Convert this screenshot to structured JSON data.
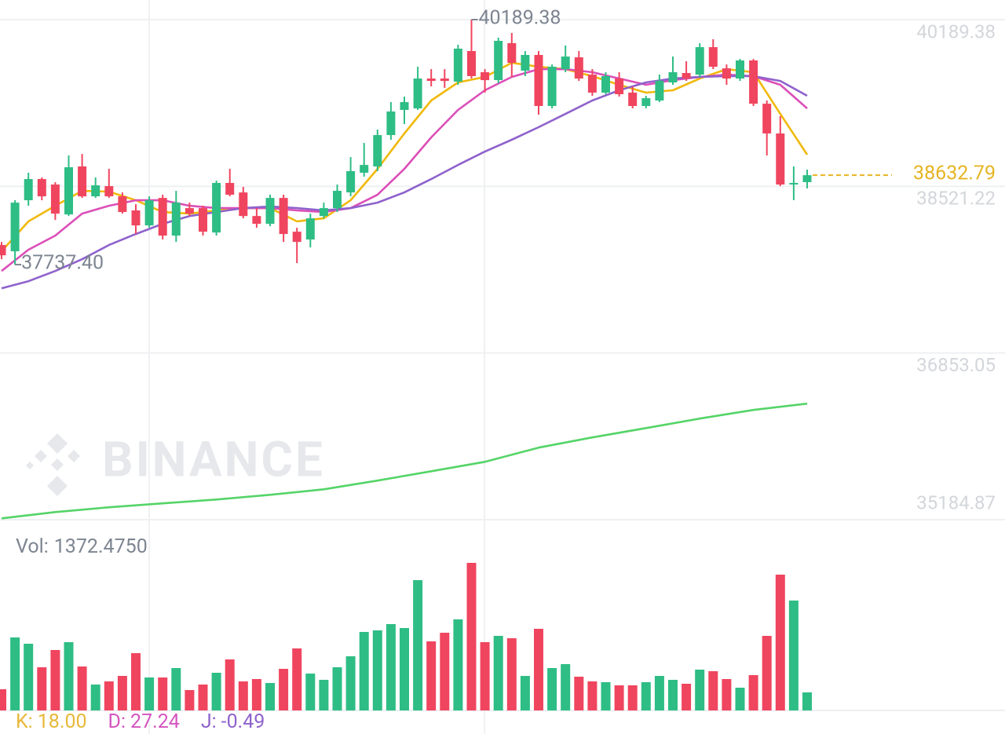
{
  "chart_data": {
    "type": "candlestick",
    "ylim": [
      35184.87,
      40385.8
    ],
    "yticks": [
      40189.38,
      38521.22,
      36853.05,
      35184.87
    ],
    "grid": true,
    "up_color": "#2ebd85",
    "down_color": "#f0455f",
    "open": [
      37934,
      37871,
      38382,
      38594,
      38539,
      38240,
      38720,
      38421,
      38523,
      38421,
      38280,
      38130,
      38405,
      38028,
      38303,
      38303,
      38059,
      38555,
      38460,
      38224,
      38146,
      38405,
      38067,
      37989,
      38224,
      38303,
      38460,
      38657,
      38720,
      39034,
      39286,
      39301,
      39600,
      39600,
      39569,
      39875,
      39663,
      39584,
      39954,
      39679,
      39836,
      39325,
      39694,
      39812,
      39639,
      39459,
      39600,
      39459,
      39325,
      39380,
      39561,
      39655,
      39639,
      39914,
      39702,
      39600,
      39781,
      39348,
      39050,
      38539,
      38563
    ],
    "high": [
      37965,
      38382,
      38657,
      38610,
      38562,
      38830,
      38845,
      38610,
      38696,
      38460,
      38342,
      38421,
      38437,
      38476,
      38358,
      38327,
      38578,
      38696,
      38515,
      38303,
      38437,
      38437,
      38107,
      38248,
      38358,
      38539,
      38814,
      38955,
      39089,
      39364,
      39419,
      39718,
      39694,
      39694,
      39938,
      40189.38,
      39694,
      40009,
      40056,
      39875,
      39875,
      39741,
      39930,
      39875,
      39694,
      39663,
      39663,
      39521,
      39427,
      39639,
      39820,
      39773,
      39954,
      39993,
      39741,
      39796,
      39796,
      39380,
      39223,
      38720,
      38688
    ],
    "low": [
      37792,
      37737.4,
      38327,
      38382,
      38185,
      38224,
      38405,
      38405,
      38405,
      38248,
      38044,
      38107,
      37989,
      37965,
      38224,
      38028,
      38028,
      38421,
      38201,
      38107,
      38122,
      37965,
      37753,
      37910,
      38201,
      38264,
      38421,
      38617,
      38673,
      38987,
      39144,
      39286,
      39521,
      39506,
      39537,
      39600,
      39459,
      39553,
      39616,
      39624,
      39238,
      39301,
      39663,
      39576,
      39427,
      39443,
      39419,
      39301,
      39301,
      39364,
      39537,
      39576,
      39616,
      39694,
      39537,
      39576,
      39325,
      38830,
      38523,
      38382,
      38500
    ],
    "close": [
      37831,
      38358,
      38594,
      38421,
      38248,
      38712,
      38421,
      38531,
      38421,
      38264,
      38130,
      38382,
      38028,
      38358,
      38248,
      38067,
      38555,
      38437,
      38224,
      38146,
      38405,
      38044,
      37965,
      38201,
      38303,
      38476,
      38673,
      38735,
      39034,
      39270,
      39364,
      39600,
      39576,
      39576,
      39899,
      39624,
      39584,
      39977,
      39757,
      39836,
      39325,
      39718,
      39820,
      39600,
      39459,
      39624,
      39443,
      39325,
      39403,
      39576,
      39663,
      39600,
      39914,
      39718,
      39600,
      39781,
      39348,
      39050,
      38539,
      38555,
      38632.79
    ],
    "high_label": "40189.38",
    "low_label": "37737.40",
    "ma_lines": [
      {
        "color": "#f0b90b",
        "x": [
          0,
          2,
          4,
          6,
          8,
          10,
          12,
          14,
          16,
          18,
          20,
          22,
          24,
          26,
          28,
          30,
          32,
          34,
          36,
          38,
          40,
          42,
          44,
          46,
          48,
          50,
          52,
          54,
          56,
          58,
          60
        ],
        "values": [
          37871,
          38170,
          38327,
          38476,
          38468,
          38382,
          38264,
          38248,
          38280,
          38303,
          38303,
          38170,
          38201,
          38382,
          38696,
          39050,
          39380,
          39561,
          39616,
          39757,
          39718,
          39694,
          39624,
          39537,
          39459,
          39482,
          39600,
          39694,
          39663,
          39246,
          38838
        ]
      },
      {
        "color": "#db4fb8",
        "x": [
          0,
          2,
          4,
          6,
          8,
          10,
          12,
          14,
          16,
          18,
          20,
          22,
          24,
          26,
          28,
          30,
          32,
          34,
          36,
          38,
          40,
          42,
          44,
          46,
          48,
          50,
          52,
          54,
          56,
          58,
          60
        ],
        "values": [
          37674,
          37887,
          38028,
          38248,
          38327,
          38382,
          38382,
          38327,
          38303,
          38303,
          38303,
          38280,
          38264,
          38303,
          38437,
          38696,
          39011,
          39286,
          39482,
          39616,
          39694,
          39694,
          39663,
          39600,
          39537,
          39584,
          39616,
          39639,
          39624,
          39537,
          39301
        ]
      },
      {
        "color": "#8e62cc",
        "x": [
          0,
          2,
          4,
          6,
          8,
          10,
          12,
          14,
          16,
          18,
          20,
          22,
          24,
          26,
          28,
          30,
          32,
          34,
          36,
          38,
          40,
          42,
          44,
          46,
          48,
          50,
          52,
          54,
          56,
          58,
          60
        ],
        "values": [
          37501,
          37572,
          37674,
          37792,
          37934,
          38044,
          38146,
          38224,
          38264,
          38303,
          38319,
          38303,
          38280,
          38303,
          38358,
          38460,
          38594,
          38735,
          38869,
          38987,
          39113,
          39246,
          39380,
          39482,
          39561,
          39600,
          39616,
          39624,
          39624,
          39576,
          39427
        ]
      },
      {
        "color": "#55d468",
        "x": [
          0,
          4,
          8,
          12,
          16,
          20,
          24,
          28,
          32,
          36,
          40,
          44,
          48,
          52,
          56,
          60
        ],
        "values": [
          35198,
          35261,
          35309,
          35348,
          35387,
          35434,
          35489,
          35576,
          35670,
          35764,
          35906,
          36008,
          36102,
          36197,
          36283,
          36346
        ]
      }
    ],
    "volume": [
      1611,
      5549,
      5072,
      3282,
      4595,
      5191,
      3342,
      1969,
      2208,
      2625,
      4356,
      2506,
      2506,
      3222,
      1551,
      1969,
      2864,
      3879,
      2208,
      2387,
      2088,
      3163,
      4714,
      2804,
      2327,
      3282,
      4117,
      5967,
      6086,
      6564,
      6265,
      9905,
      5251,
      5907,
      6922,
      11218,
      5191,
      5669,
      5490,
      2625,
      6206,
      3222,
      3521,
      2566,
      2208,
      2148,
      1909,
      1909,
      2148,
      2625,
      2327,
      2029,
      3103,
      2984,
      2387,
      1730,
      2685,
      5669,
      10323,
      8354,
      1372.475
    ],
    "volume_ylim": [
      0,
      13426
    ],
    "volume_readout": {
      "label": "Vol:",
      "value_label": "1372.4750"
    },
    "kdj": [
      {
        "name": "K:",
        "value": 18.0,
        "label": "18.00",
        "color": "#e8b83a"
      },
      {
        "name": "D:",
        "value": 27.24,
        "label": "27.24",
        "color": "#d555c0"
      },
      {
        "name": "J:",
        "value": -0.49,
        "label": "-0.49",
        "color": "#8e62cc"
      }
    ],
    "watermark": "BINANCE"
  }
}
